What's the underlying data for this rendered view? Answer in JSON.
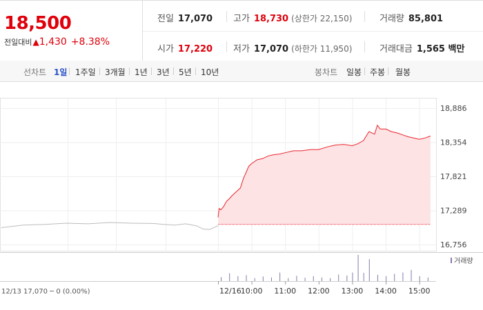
{
  "quote": {
    "price": "18,500",
    "change_label": "전일대비",
    "change_arrow": "▲",
    "change": "1,430",
    "change_pct": "+8.38%",
    "prev_close_label": "전일",
    "prev_close": "17,070",
    "open_label": "시가",
    "open": "17,220",
    "high_label": "고가",
    "high": "18,730",
    "upper_limit_label": "상한가",
    "upper_limit": "22,150",
    "low_label": "저가",
    "low": "17,070",
    "lower_limit_label": "하한가",
    "lower_limit": "11,950",
    "volume_label": "거래량",
    "volume": "85,801",
    "amount_label": "거래대금",
    "amount": "1,565 백만"
  },
  "period_bar": {
    "label": "선차트",
    "tabs": [
      "1일",
      "1주일",
      "3개월",
      "1년",
      "3년",
      "5년",
      "10년"
    ],
    "active": "1일",
    "candle_label": "봉차트",
    "candle_tabs": [
      "일봉",
      "주봉",
      "월봉"
    ]
  },
  "colors": {
    "up": "#e0000b",
    "line": "#e8232c",
    "fill": "#fde3e4",
    "prev_line": "#bbbbbb",
    "volume": "#8a78a8",
    "active_tab": "#2b52c6"
  },
  "chart_data": {
    "type": "line",
    "y_ticks": [
      "18,886",
      "18,354",
      "17,821",
      "17,289",
      "16,756"
    ],
    "ylim": [
      16756,
      18886
    ],
    "x_ticks": [
      "12/16",
      "10:00",
      "11:00",
      "12:00",
      "13:00",
      "14:00",
      "15:00"
    ],
    "baseline": 17070,
    "prev_day": {
      "date_label": "12/13",
      "summary": "17,070 ─ 0 (0.00%)",
      "x": [
        0,
        0.1,
        0.2,
        0.3,
        0.4,
        0.5,
        0.6,
        0.7,
        0.75,
        0.8,
        0.85,
        0.9,
        0.93,
        0.96,
        1.0
      ],
      "values": [
        17020,
        17060,
        17070,
        17090,
        17080,
        17100,
        17090,
        17085,
        17070,
        17060,
        17080,
        17050,
        17000,
        16990,
        17050
      ]
    },
    "intraday": {
      "x": [
        "09:00",
        "09:02",
        "09:05",
        "09:10",
        "09:15",
        "09:20",
        "09:25",
        "09:30",
        "09:35",
        "09:40",
        "09:45",
        "09:50",
        "09:55",
        "10:00",
        "10:10",
        "10:20",
        "10:30",
        "10:40",
        "10:50",
        "11:00",
        "11:15",
        "11:30",
        "11:45",
        "12:00",
        "12:15",
        "12:30",
        "12:45",
        "13:00",
        "13:10",
        "13:20",
        "13:30",
        "13:40",
        "13:45",
        "13:50",
        "14:00",
        "14:10",
        "14:20",
        "14:30",
        "14:40",
        "14:50",
        "15:00",
        "15:10",
        "15:20"
      ],
      "values": [
        17180,
        17320,
        17300,
        17350,
        17430,
        17470,
        17520,
        17560,
        17600,
        17640,
        17780,
        17880,
        17980,
        18020,
        18080,
        18100,
        18140,
        18160,
        18170,
        18190,
        18220,
        18220,
        18240,
        18240,
        18280,
        18310,
        18320,
        18300,
        18330,
        18380,
        18520,
        18480,
        18620,
        18560,
        18560,
        18520,
        18500,
        18470,
        18440,
        18420,
        18400,
        18420,
        18450
      ]
    },
    "volume": {
      "legend": "거래량",
      "x": [
        "09:05",
        "09:20",
        "09:35",
        "09:50",
        "10:05",
        "10:20",
        "10:35",
        "10:50",
        "11:05",
        "11:20",
        "11:35",
        "11:50",
        "12:05",
        "12:20",
        "12:35",
        "12:50",
        "13:00",
        "13:10",
        "13:20",
        "13:30",
        "13:45",
        "14:00",
        "14:15",
        "14:30",
        "14:45",
        "15:00",
        "15:15"
      ],
      "values": [
        1200,
        2400,
        1500,
        1800,
        900,
        1400,
        1100,
        2600,
        900,
        1600,
        1000,
        1500,
        1100,
        900,
        2000,
        1700,
        2600,
        8000,
        2500,
        6700,
        1900,
        1500,
        2200,
        2600,
        3400,
        1500,
        1100
      ]
    }
  }
}
